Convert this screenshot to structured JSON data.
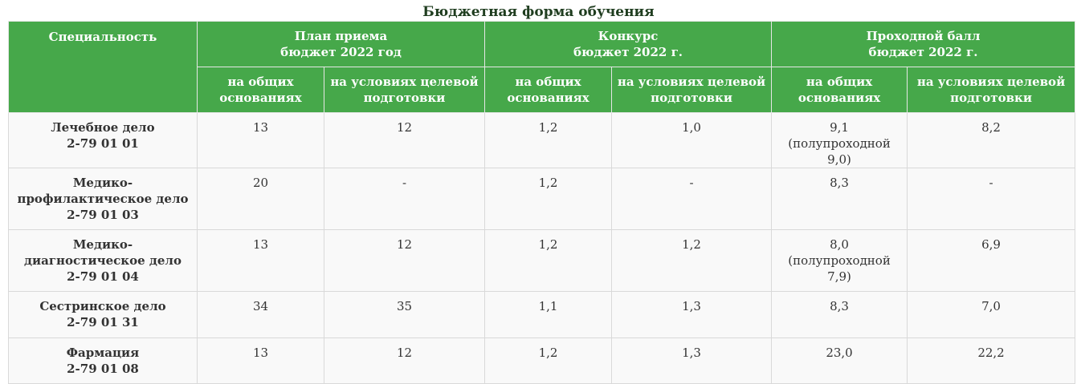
{
  "caption": "Бюджетная форма обучения",
  "table": {
    "headers": {
      "specialty": "Специальность",
      "groups": [
        {
          "line1": "План приема",
          "line2": "бюджет 2022 год"
        },
        {
          "line1": "Конкурс",
          "line2": "бюджет 2022 г."
        },
        {
          "line1": "Проходной балл",
          "line2": "бюджет 2022 г."
        }
      ],
      "sub": [
        {
          "line1": "на общих",
          "line2": "основаниях"
        },
        {
          "line1": "на условиях целевой",
          "line2": "подготовки"
        },
        {
          "line1": "на общих",
          "line2": "основаниях"
        },
        {
          "line1": "на условиях целевой",
          "line2": "подготовки"
        },
        {
          "line1": "на общих",
          "line2": "основаниях"
        },
        {
          "line1": "на условиях целевой",
          "line2": "подготовки"
        }
      ]
    },
    "rows": [
      {
        "name": "Лечебное дело",
        "code": "2-79 01 01",
        "plan_general": "13",
        "plan_target": "12",
        "competition_general": "1,2",
        "competition_target": "1,0",
        "score_general": "9,1 (полупроходной 9,0)",
        "score_target": "8,2"
      },
      {
        "name": "Медико-профилактическое дело",
        "code": "2-79 01 03",
        "plan_general": "20",
        "plan_target": "-",
        "competition_general": "1,2",
        "competition_target": "-",
        "score_general": "8,3",
        "score_target": "-"
      },
      {
        "name": "Медико-диагностическое дело",
        "code": "2-79 01 04",
        "plan_general": "13",
        "plan_target": "12",
        "competition_general": "1,2",
        "competition_target": "1,2",
        "score_general": "8,0 (полупроходной 7,9)",
        "score_target": "6,9"
      },
      {
        "name": "Сестринское дело",
        "code": "2-79 01 31",
        "plan_general": "34",
        "plan_target": "35",
        "competition_general": "1,1",
        "competition_target": "1,3",
        "score_general": "8,3",
        "score_target": "7,0"
      },
      {
        "name": "Фармация",
        "code": "2-79 01 08",
        "plan_general": "13",
        "plan_target": "12",
        "competition_general": "1,2",
        "competition_target": "1,3",
        "score_general": "23,0",
        "score_target": "22,2"
      }
    ]
  }
}
